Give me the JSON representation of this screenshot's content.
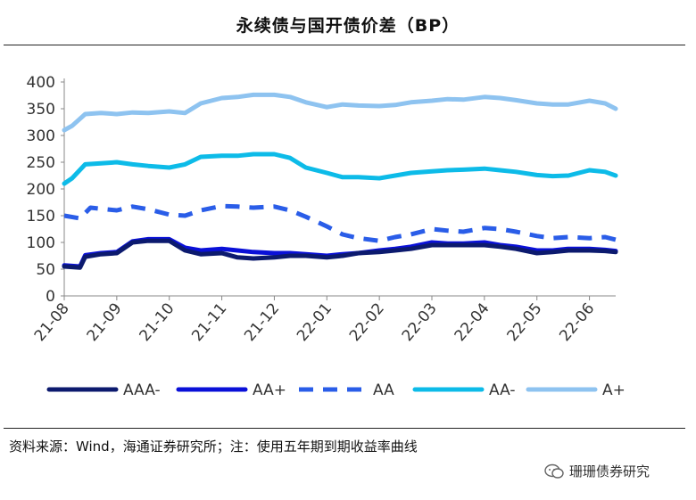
{
  "chart_data": {
    "type": "line",
    "title": "永续债与国开债价差（BP）",
    "xlabel": "",
    "ylabel": "",
    "ylim": [
      0,
      400
    ],
    "yticks": [
      0,
      50,
      100,
      150,
      200,
      250,
      300,
      350,
      400
    ],
    "xlim": [
      0,
      10.5
    ],
    "x_ticks": [
      {
        "x": 0,
        "label": "21-08"
      },
      {
        "x": 1,
        "label": "21-09"
      },
      {
        "x": 2,
        "label": "21-10"
      },
      {
        "x": 3,
        "label": "21-11"
      },
      {
        "x": 4,
        "label": "21-12"
      },
      {
        "x": 5,
        "label": "22-01"
      },
      {
        "x": 6,
        "label": "22-02"
      },
      {
        "x": 7,
        "label": "22-03"
      },
      {
        "x": 8,
        "label": "22-04"
      },
      {
        "x": 9,
        "label": "22-05"
      },
      {
        "x": 10,
        "label": "22-06"
      }
    ],
    "legend_position": "bottom",
    "series": [
      {
        "name": "AAA-",
        "color": "#0c1a6e",
        "dash": "solid",
        "x": [
          0,
          0.3,
          0.4,
          0.7,
          1,
          1.3,
          1.6,
          2,
          2.3,
          2.6,
          3,
          3.3,
          3.6,
          4,
          4.3,
          4.6,
          5,
          5.3,
          5.6,
          6,
          6.3,
          6.6,
          7,
          7.3,
          7.6,
          8,
          8.3,
          8.6,
          9,
          9.3,
          9.6,
          10,
          10.3,
          10.5
        ],
        "values": [
          55,
          53,
          73,
          78,
          80,
          100,
          103,
          103,
          85,
          78,
          80,
          72,
          70,
          72,
          75,
          75,
          72,
          75,
          80,
          82,
          85,
          88,
          95,
          95,
          95,
          95,
          92,
          88,
          80,
          82,
          85,
          85,
          84,
          82
        ]
      },
      {
        "name": "AA+",
        "color": "#0a10d8",
        "dash": "solid",
        "x": [
          0,
          0.3,
          0.4,
          0.7,
          1,
          1.3,
          1.6,
          2,
          2.3,
          2.6,
          3,
          3.3,
          3.6,
          4,
          4.3,
          4.6,
          5,
          5.3,
          5.6,
          6,
          6.3,
          6.6,
          7,
          7.3,
          7.6,
          8,
          8.3,
          8.6,
          9,
          9.3,
          9.6,
          10,
          10.3,
          10.5
        ],
        "values": [
          57,
          55,
          76,
          80,
          82,
          102,
          106,
          106,
          90,
          85,
          88,
          85,
          82,
          80,
          80,
          78,
          75,
          78,
          80,
          85,
          88,
          92,
          100,
          98,
          98,
          100,
          95,
          92,
          85,
          85,
          88,
          88,
          86,
          84
        ]
      },
      {
        "name": "AA",
        "color": "#2a5de8",
        "dash": "dashed",
        "x": [
          0,
          0.3,
          0.5,
          1,
          1.3,
          1.6,
          2,
          2.3,
          2.6,
          3,
          3.3,
          3.6,
          4,
          4.3,
          4.6,
          5,
          5.3,
          5.6,
          6,
          6.3,
          6.6,
          7,
          7.3,
          7.6,
          8,
          8.3,
          8.6,
          9,
          9.3,
          9.6,
          10,
          10.3,
          10.5
        ],
        "values": [
          150,
          145,
          165,
          160,
          167,
          162,
          152,
          150,
          160,
          168,
          167,
          165,
          167,
          160,
          148,
          130,
          115,
          108,
          103,
          110,
          115,
          125,
          122,
          120,
          127,
          125,
          120,
          112,
          108,
          110,
          108,
          110,
          105
        ]
      },
      {
        "name": "AA-",
        "color": "#0dbbe8",
        "dash": "solid",
        "x": [
          0,
          0.15,
          0.4,
          0.7,
          1,
          1.3,
          1.6,
          2,
          2.3,
          2.6,
          3,
          3.3,
          3.6,
          4,
          4.3,
          4.6,
          5,
          5.3,
          5.6,
          6,
          6.3,
          6.6,
          7,
          7.3,
          7.6,
          8,
          8.3,
          8.6,
          9,
          9.3,
          9.6,
          10,
          10.3,
          10.5
        ],
        "values": [
          210,
          220,
          246,
          248,
          250,
          246,
          243,
          240,
          246,
          260,
          262,
          262,
          265,
          265,
          258,
          240,
          230,
          222,
          222,
          220,
          225,
          230,
          233,
          235,
          236,
          238,
          235,
          232,
          226,
          224,
          225,
          235,
          232,
          225
        ]
      },
      {
        "name": "A+",
        "color": "#8ec3f0",
        "dash": "solid",
        "x": [
          0,
          0.15,
          0.4,
          0.7,
          1,
          1.3,
          1.6,
          2,
          2.3,
          2.6,
          3,
          3.3,
          3.6,
          4,
          4.3,
          4.6,
          5,
          5.3,
          5.6,
          6,
          6.3,
          6.6,
          7,
          7.3,
          7.6,
          8,
          8.3,
          8.6,
          9,
          9.3,
          9.6,
          10,
          10.3,
          10.5
        ],
        "values": [
          310,
          318,
          340,
          342,
          340,
          343,
          342,
          345,
          342,
          360,
          370,
          372,
          376,
          376,
          372,
          362,
          353,
          358,
          356,
          355,
          357,
          362,
          365,
          368,
          367,
          372,
          370,
          366,
          360,
          358,
          358,
          365,
          360,
          350
        ]
      }
    ]
  },
  "source_text": "资料来源：Wind，海通证券研究所；注：使用五年期到期收益率曲线",
  "watermark": {
    "label": "珊珊债券研究",
    "icon": "wechat-icon"
  }
}
